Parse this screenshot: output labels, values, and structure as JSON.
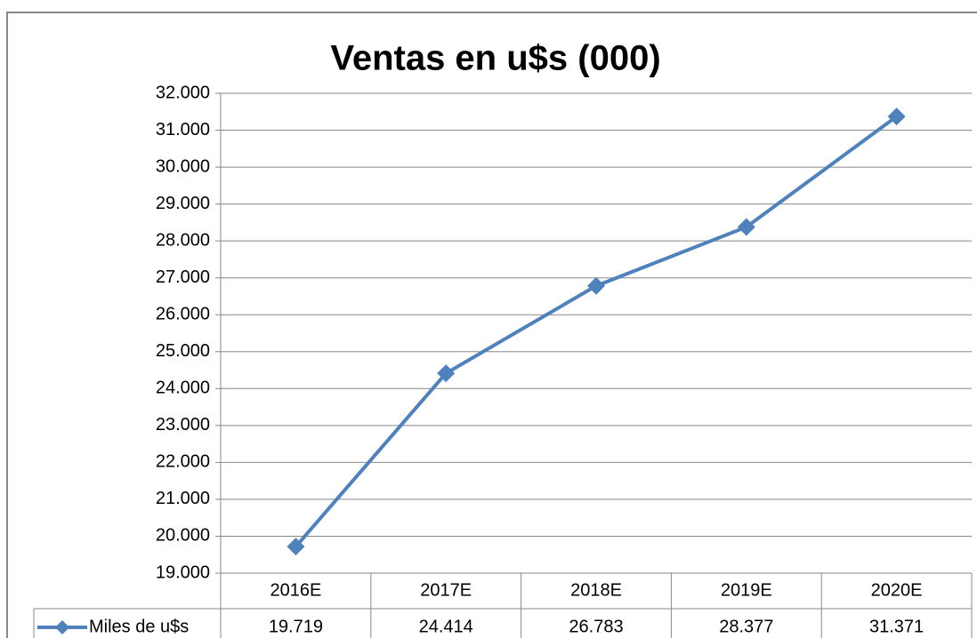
{
  "chart_data": {
    "type": "line",
    "title": "Ventas en u$s (000)",
    "categories": [
      "2016E",
      "2017E",
      "2018E",
      "2019E",
      "2020E"
    ],
    "series": [
      {
        "name": "Miles de u$s",
        "color": "#4f81bd",
        "values": [
          19719,
          24414,
          26783,
          28377,
          31371
        ],
        "value_labels": [
          "19.719",
          "24.414",
          "26.783",
          "28.377",
          "31.371"
        ]
      }
    ],
    "ylim": [
      19000,
      32000
    ],
    "yticks": [
      {
        "value": 19000,
        "label": "19.000"
      },
      {
        "value": 20000,
        "label": "20.000"
      },
      {
        "value": 21000,
        "label": "21.000"
      },
      {
        "value": 22000,
        "label": "22.000"
      },
      {
        "value": 23000,
        "label": "23.000"
      },
      {
        "value": 24000,
        "label": "24.000"
      },
      {
        "value": 25000,
        "label": "25.000"
      },
      {
        "value": 26000,
        "label": "26.000"
      },
      {
        "value": 27000,
        "label": "27.000"
      },
      {
        "value": 28000,
        "label": "28.000"
      },
      {
        "value": 29000,
        "label": "29.000"
      },
      {
        "value": 30000,
        "label": "30.000"
      },
      {
        "value": 31000,
        "label": "31.000"
      },
      {
        "value": 32000,
        "label": "32.000"
      }
    ],
    "grid": true
  }
}
